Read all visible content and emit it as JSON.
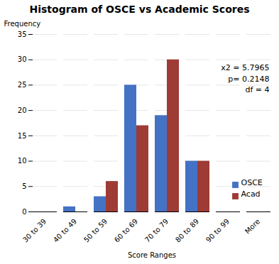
{
  "chart_data": {
    "type": "bar",
    "title": "Histogram of OSCE vs Academic Scores",
    "xlabel": "Score Ranges",
    "ylabel": "Frequency",
    "categories": [
      "30 to 39",
      "40 to 49",
      "50 to 59",
      "60 to 69",
      "70 to 79",
      "80 to 89",
      "90 to 99",
      "More"
    ],
    "series": [
      {
        "name": "OSCE",
        "color": "#4472C4",
        "values": [
          0,
          1,
          3,
          25,
          19,
          10,
          0,
          0
        ]
      },
      {
        "name": "Acad",
        "color": "#9E3B35",
        "values": [
          0,
          0,
          6,
          17,
          30,
          10,
          0,
          0
        ]
      }
    ],
    "ylim": [
      0,
      35
    ],
    "yticks": [
      0,
      5,
      10,
      15,
      20,
      25,
      30,
      35
    ],
    "grid": true,
    "legend": "lower right",
    "annotation": "x2 = 5.7965\np= 0.2148\ndf = 4"
  }
}
